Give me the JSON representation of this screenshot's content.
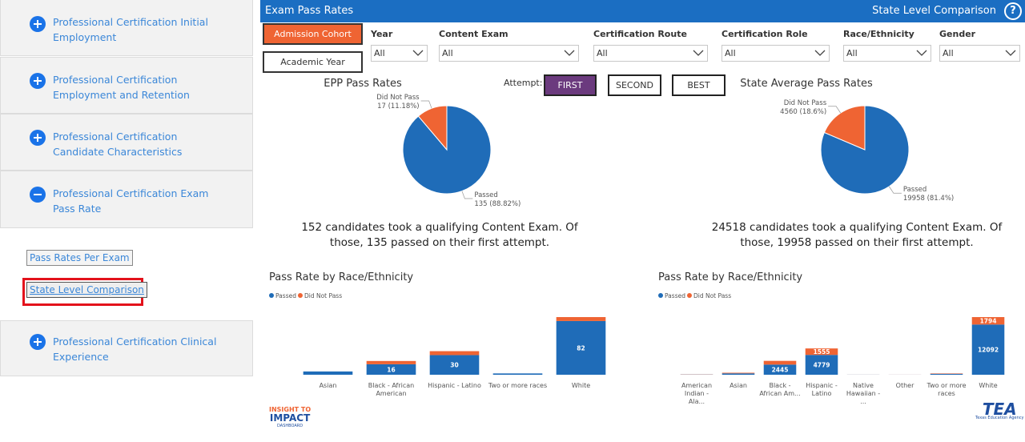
{
  "sidebar": {
    "items": [
      {
        "label": "Professional Certification Initial Employment"
      },
      {
        "label": "Professional Certification Employment and Retention"
      },
      {
        "label": "Professional Certification Candidate Characteristics"
      },
      {
        "label": "Professional Certification Exam Pass Rate"
      },
      {
        "label": "Professional Certification Clinical Experience"
      }
    ],
    "links": [
      "Pass Rates Per Exam",
      "State Level Comparison"
    ]
  },
  "header": {
    "title": "Exam Pass Rates",
    "page": "State Level Comparison",
    "help": "?"
  },
  "filters": {
    "buttons": [
      "Admission Cohort",
      "Academic Year"
    ],
    "dropdowns": [
      {
        "label": "Year",
        "value": "All"
      },
      {
        "label": "Content Exam",
        "value": "All"
      },
      {
        "label": "Certification Route",
        "value": "All"
      },
      {
        "label": "Certification Role",
        "value": "All"
      },
      {
        "label": "Race/Ethnicity",
        "value": "All"
      },
      {
        "label": "Gender",
        "value": "All"
      }
    ]
  },
  "attempt": {
    "label": "Attempt:",
    "options": [
      "FIRST",
      "SECOND",
      "BEST"
    ]
  },
  "chart_data": [
    {
      "type": "pie",
      "title": "EPP Pass Rates",
      "categories": [
        "Passed",
        "Did Not Pass"
      ],
      "values": [
        135,
        17
      ],
      "value_labels": [
        "135 (88.82%)",
        "17 (11.18%)"
      ],
      "colors": [
        "#1f6cb8",
        "#ef6433"
      ]
    },
    {
      "type": "pie",
      "title": "State Average Pass Rates",
      "categories": [
        "Passed",
        "Did Not Pass"
      ],
      "values": [
        19958,
        4560
      ],
      "value_labels": [
        "19958 (81.4%)",
        "4560 (18.6%)"
      ],
      "colors": [
        "#1f6cb8",
        "#ef6433"
      ]
    },
    {
      "type": "bar",
      "stacked": true,
      "title": "Pass Rate by Race/Ethnicity",
      "categories": [
        "Asian",
        "Black - African American",
        "Hispanic - Latino",
        "Two or more races",
        "White"
      ],
      "series": [
        {
          "name": "Passed",
          "color": "#1f6cb8",
          "values": [
            5,
            16,
            30,
            2,
            82
          ]
        },
        {
          "name": "Did Not Pass",
          "color": "#ef6433",
          "values": [
            0,
            5,
            6,
            0,
            6
          ]
        }
      ]
    },
    {
      "type": "bar",
      "stacked": true,
      "title": "Pass Rate by Race/Ethnicity",
      "categories": [
        "American Indian - Ala...",
        "Asian",
        "Black - African Am...",
        "Hispanic - Latino",
        "Native Hawaiian - ...",
        "Other",
        "Two or more races",
        "White"
      ],
      "series": [
        {
          "name": "Passed",
          "color": "#1f6cb8",
          "values": [
            60,
            330,
            2445,
            4779,
            20,
            12,
            220,
            12092
          ]
        },
        {
          "name": "Did Not Pass",
          "color": "#ef6433",
          "values": [
            40,
            150,
            900,
            1555,
            10,
            11,
            100,
            1794
          ]
        }
      ]
    }
  ],
  "summaries": [
    [
      "152 candidates took a qualifying Content Exam. Of",
      "those, 135 passed on their first attempt."
    ],
    [
      "24518 candidates took a qualifying Content Exam. Of",
      "those, 19958 passed on their first attempt."
    ]
  ],
  "logos": {
    "left": [
      "INSIGHT TO",
      "IMPACT",
      "DASHBOARD"
    ],
    "right": [
      "TEA",
      "Texas Education Agency"
    ]
  }
}
